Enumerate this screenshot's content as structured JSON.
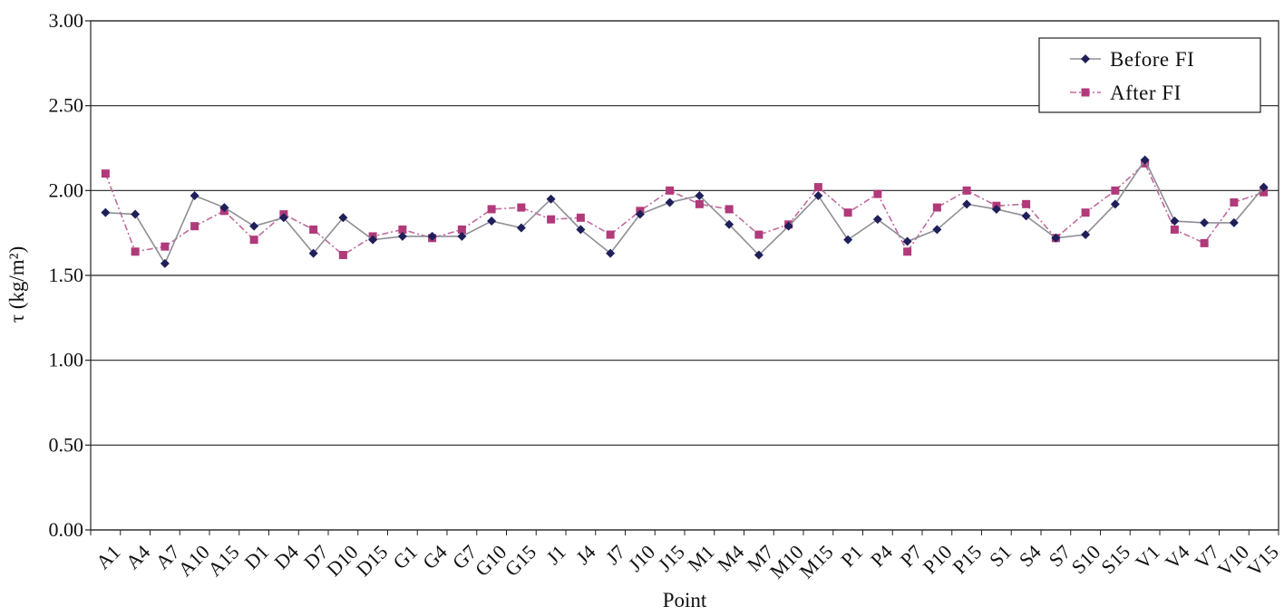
{
  "chart_data": {
    "type": "line",
    "xlabel": "Point",
    "ylabel": "τ (kg/m²)",
    "ylim": [
      0,
      3
    ],
    "yticks": [
      "0.00",
      "0.50",
      "1.00",
      "1.50",
      "2.00",
      "2.50",
      "3.00"
    ],
    "grid": "horizontal",
    "legend_position": "top-right",
    "categories": [
      "A1",
      "A4",
      "A7",
      "A10",
      "A15",
      "D1",
      "D4",
      "D7",
      "D10",
      "D15",
      "G1",
      "G4",
      "G7",
      "G10",
      "G15",
      "J1",
      "J4",
      "J7",
      "J10",
      "J15",
      "M1",
      "M4",
      "M7",
      "M10",
      "M15",
      "P1",
      "P4",
      "P7",
      "P10",
      "P15",
      "S1",
      "S4",
      "S7",
      "S10",
      "S15",
      "V1",
      "V4",
      "V7",
      "V10",
      "V15"
    ],
    "series": [
      {
        "name": "Before FI",
        "color": "#1f1f5a",
        "marker": "diamond",
        "values": [
          1.87,
          1.86,
          1.57,
          1.97,
          1.9,
          1.79,
          1.84,
          1.63,
          1.84,
          1.71,
          1.73,
          1.73,
          1.73,
          1.82,
          1.78,
          1.95,
          1.77,
          1.63,
          1.86,
          1.93,
          1.97,
          1.8,
          1.62,
          1.79,
          1.97,
          1.71,
          1.83,
          1.7,
          1.77,
          1.92,
          1.89,
          1.85,
          1.72,
          1.74,
          1.92,
          2.18,
          1.82,
          1.81,
          1.81,
          2.02
        ]
      },
      {
        "name": "After FI",
        "color": "#b03a7a",
        "marker": "square",
        "values": [
          2.1,
          1.64,
          1.67,
          1.79,
          1.88,
          1.71,
          1.86,
          1.77,
          1.62,
          1.73,
          1.77,
          1.72,
          1.77,
          1.89,
          1.9,
          1.83,
          1.84,
          1.74,
          1.88,
          2.0,
          1.92,
          1.89,
          1.74,
          1.8,
          2.02,
          1.87,
          1.98,
          1.64,
          1.9,
          2.0,
          1.91,
          1.92,
          1.72,
          1.87,
          2.0,
          2.16,
          1.77,
          1.69,
          1.93,
          1.99
        ]
      }
    ]
  }
}
